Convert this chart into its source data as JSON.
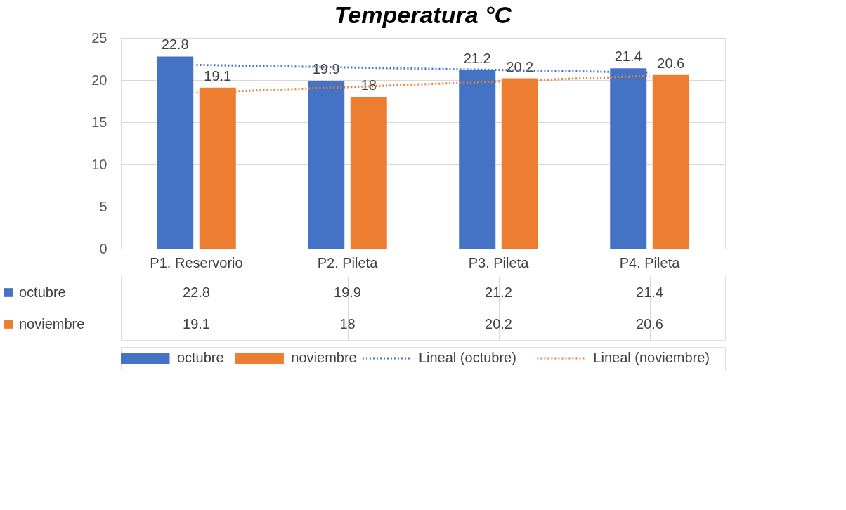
{
  "chart_data": {
    "type": "bar",
    "title": "Temperatura °C",
    "categories": [
      "P1. Reservorio",
      "P2. Pileta",
      "P3. Pileta",
      "P4. Pileta"
    ],
    "series": [
      {
        "name": "octubre",
        "color": "#4472c4",
        "values": [
          22.8,
          19.9,
          21.2,
          21.4
        ]
      },
      {
        "name": "noviembre",
        "color": "#ed7d31",
        "values": [
          19.1,
          18,
          20.2,
          20.6
        ]
      },
      {
        "name": "Lineal (octubre)",
        "type": "line",
        "line_style": "dotted",
        "color": "#4472c4",
        "x": [
          "P1. Reservorio",
          "P4. Pileta"
        ],
        "values": [
          21.8,
          20.9
        ],
        "value_labels": [
          null,
          null
        ]
      },
      {
        "name": "Lineal (noviembre)",
        "type": "line",
        "line_style": "dotted",
        "color": "#ed7d31",
        "x": [
          "P1. Reservorio",
          "P4. Pileta"
        ],
        "values": [
          18.5,
          20.5
        ],
        "value_labels": [
          null,
          null
        ]
      }
    ],
    "ylim": [
      0,
      25
    ],
    "yticks": [
      0,
      5,
      10,
      15,
      20,
      25
    ],
    "grid": "y",
    "legend": "bottom",
    "data_labels": true,
    "annotations": [
      "22.8",
      "19.9",
      "21.2",
      "21.4",
      "19.1",
      "18",
      "20.2",
      "20.6"
    ]
  }
}
